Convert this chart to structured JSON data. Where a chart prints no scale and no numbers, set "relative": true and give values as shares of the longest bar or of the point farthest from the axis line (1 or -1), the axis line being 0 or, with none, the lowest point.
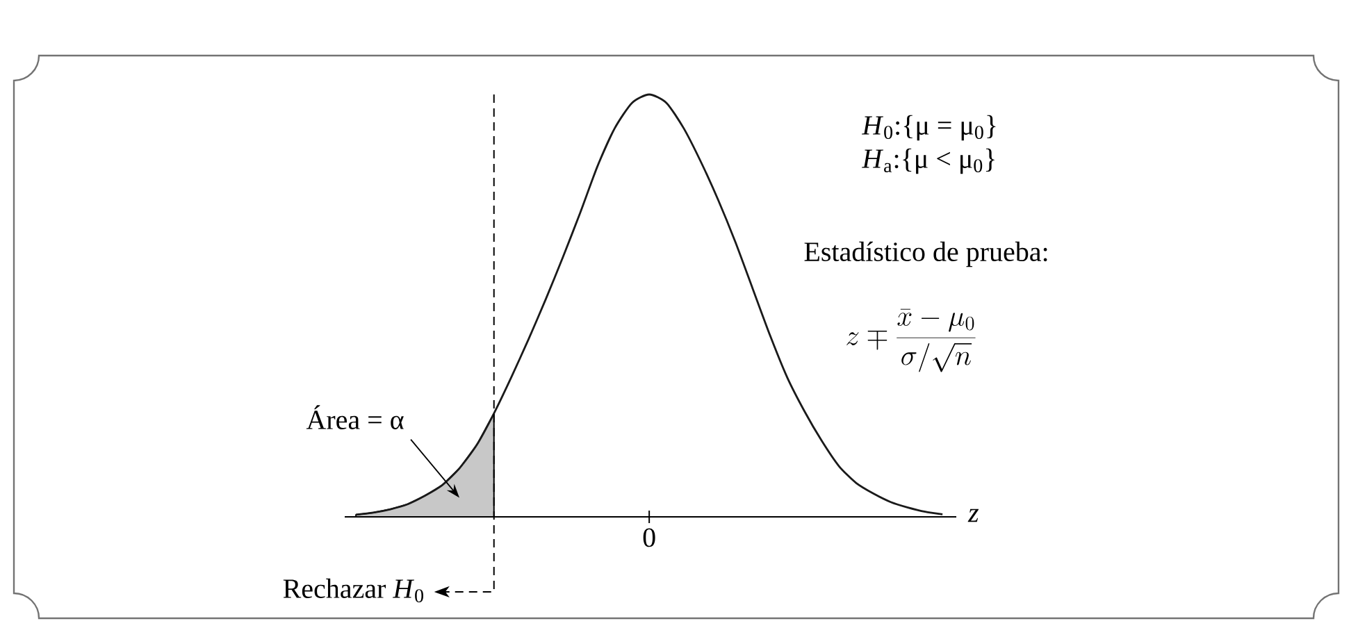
{
  "chart_data": {
    "type": "line",
    "relative": true,
    "xlabel": "z",
    "marker": "none",
    "categories": [
      null,
      null,
      null,
      null,
      null,
      null,
      null,
      null,
      null,
      null,
      null,
      null,
      null,
      null,
      null,
      null,
      null,
      null,
      null,
      null,
      null,
      null,
      null,
      null,
      null,
      null,
      null,
      null,
      null,
      null,
      null,
      null,
      null,
      null,
      null
    ],
    "series": [
      {
        "color": "#1a1a1a",
        "values": [
          0.005,
          0.01,
          0.018,
          0.03,
          0.05,
          0.075,
          0.115,
          0.17,
          0.245,
          0.33,
          0.42,
          0.515,
          0.615,
          0.72,
          0.83,
          0.92,
          0.98,
          1,
          0.98,
          0.92,
          0.84,
          0.75,
          0.65,
          0.54,
          0.43,
          0.33,
          0.25,
          0.18,
          0.12,
          0.08,
          0.055,
          0.035,
          0.022,
          0.012,
          0.006
        ]
      },
      {
        "type": "area",
        "color": "#c8c8c8",
        "values": [
          0.005,
          0.01,
          0.018,
          0.03,
          0.05,
          0.075,
          0.115,
          0.17,
          0.245,
          null,
          null,
          null,
          null,
          null,
          null,
          null,
          null,
          null,
          null,
          null,
          null,
          null,
          null,
          null,
          null,
          null,
          null,
          null,
          null,
          null,
          null,
          null,
          null,
          null,
          null
        ]
      }
    ],
    "annotations": [
      "*H*$_{0}$:{μ = μ$_{0}$}",
      "*H*$_{a}$:{μ < μ$_{0}$}",
      "Estadístico de prueba:",
      "z \\mp \\frac{\\bar{x}-\\mu_0}{\\sigma/\\sqrt{n}}",
      "Área = α",
      "0",
      "Rechazar *H*$_{0}$"
    ]
  }
}
